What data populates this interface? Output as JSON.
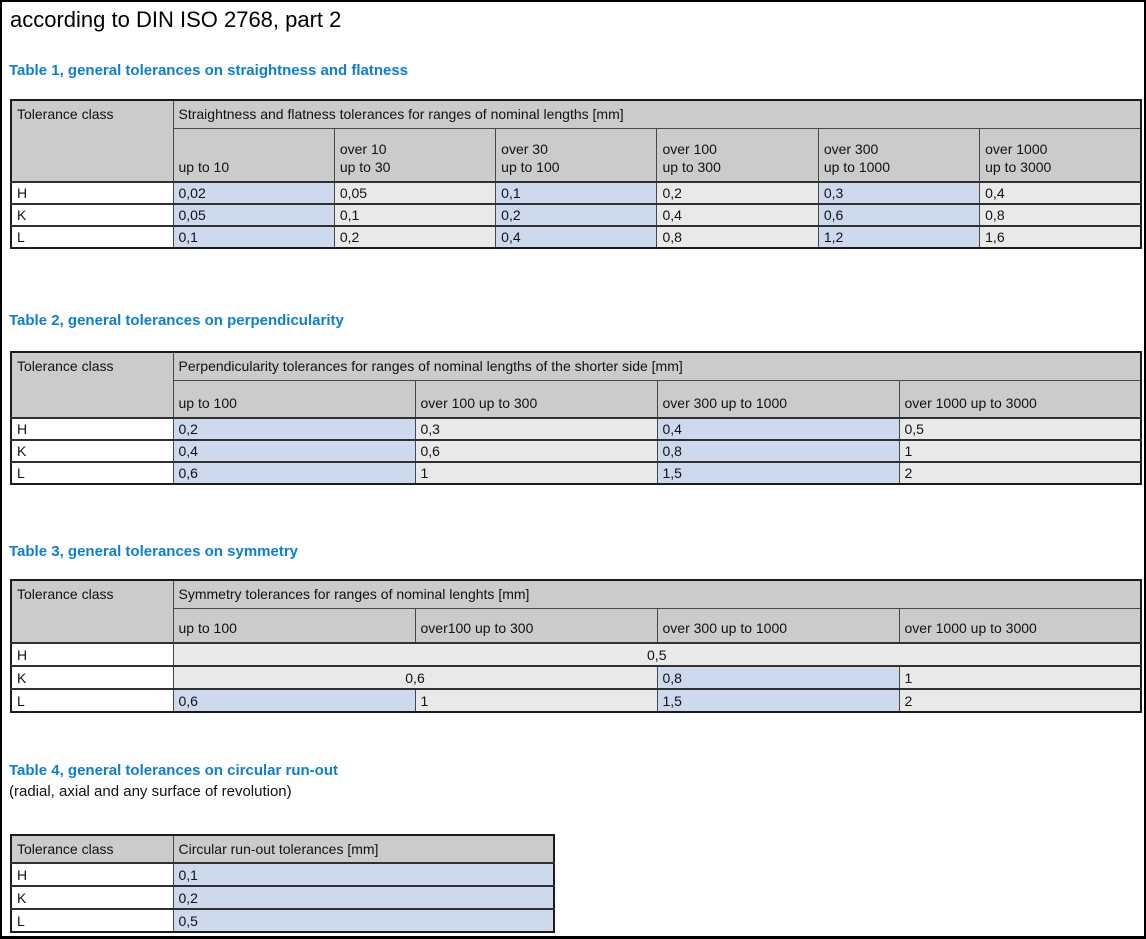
{
  "page": {
    "title": "according to DIN ISO 2768, part 2"
  },
  "colors": {
    "heading_blue": "#0d7fd2",
    "header_bg": "#cbcbcb",
    "cell_blue": "#cdd9ed",
    "cell_gray": "#e9e9e9",
    "border_dark": "#1b1b1b",
    "border_inner": "#474747"
  },
  "tables": [
    {
      "id": "t1",
      "heading": "Table 1, general tolerances on straightness and flatness",
      "class_header": "Tolerance class",
      "span_header": "Straightness and flatness tolerances for ranges of nominal lengths [mm]",
      "col_headers": [
        [
          "up to 10"
        ],
        [
          "over 10",
          "up to 30"
        ],
        [
          "over 30",
          "up to 100"
        ],
        [
          "over 100",
          "up to 300"
        ],
        [
          "over 300",
          "up to 1000"
        ],
        [
          "over 1000",
          "up to 3000"
        ]
      ],
      "rows": [
        {
          "class": "H",
          "cells": [
            {
              "v": "0,02",
              "bg": "blue"
            },
            {
              "v": "0,05",
              "bg": "gray"
            },
            {
              "v": "0,1",
              "bg": "blue"
            },
            {
              "v": "0,2",
              "bg": "gray"
            },
            {
              "v": "0,3",
              "bg": "blue"
            },
            {
              "v": "0,4",
              "bg": "gray"
            }
          ]
        },
        {
          "class": "K",
          "cells": [
            {
              "v": "0,05",
              "bg": "blue"
            },
            {
              "v": "0,1",
              "bg": "gray"
            },
            {
              "v": "0,2",
              "bg": "blue"
            },
            {
              "v": "0,4",
              "bg": "gray"
            },
            {
              "v": "0,6",
              "bg": "blue"
            },
            {
              "v": "0,8",
              "bg": "gray"
            }
          ]
        },
        {
          "class": "L",
          "cells": [
            {
              "v": "0,1",
              "bg": "blue"
            },
            {
              "v": "0,2",
              "bg": "gray"
            },
            {
              "v": "0,4",
              "bg": "blue"
            },
            {
              "v": "0,8",
              "bg": "gray"
            },
            {
              "v": "1,2",
              "bg": "blue"
            },
            {
              "v": "1,6",
              "bg": "gray"
            }
          ]
        }
      ]
    },
    {
      "id": "t2",
      "heading": "Table 2, general tolerances on perpendicularity",
      "class_header": "Tolerance class",
      "span_header": "Perpendicularity tolerances for ranges of nominal lengths of the shorter side [mm]",
      "col_headers": [
        [
          "up to 100"
        ],
        [
          "over 100 up to 300"
        ],
        [
          "over 300 up to 1000"
        ],
        [
          "over 1000 up to 3000"
        ]
      ],
      "rows": [
        {
          "class": "H",
          "cells": [
            {
              "v": "0,2",
              "bg": "blue"
            },
            {
              "v": "0,3",
              "bg": "gray"
            },
            {
              "v": "0,4",
              "bg": "blue"
            },
            {
              "v": "0,5",
              "bg": "gray"
            }
          ]
        },
        {
          "class": "K",
          "cells": [
            {
              "v": "0,4",
              "bg": "blue"
            },
            {
              "v": "0,6",
              "bg": "gray"
            },
            {
              "v": "0,8",
              "bg": "blue"
            },
            {
              "v": "1",
              "bg": "gray"
            }
          ]
        },
        {
          "class": "L",
          "cells": [
            {
              "v": "0,6",
              "bg": "blue"
            },
            {
              "v": "1",
              "bg": "gray"
            },
            {
              "v": "1,5",
              "bg": "blue"
            },
            {
              "v": "2",
              "bg": "gray"
            }
          ]
        }
      ]
    },
    {
      "id": "t3",
      "heading": "Table 3, general tolerances on symmetry",
      "class_header": "Tolerance class",
      "span_header": "Symmetry tolerances for ranges of nominal lenghts [mm]",
      "col_headers": [
        [
          "up to 100"
        ],
        [
          "over100 up to 300"
        ],
        [
          "over 300 up to 1000"
        ],
        [
          "over 1000 up to 3000"
        ]
      ],
      "rows": [
        {
          "class": "H",
          "cells": [
            {
              "v": "0,5",
              "bg": "gray",
              "colspan": 4,
              "align": "center"
            }
          ]
        },
        {
          "class": "K",
          "cells": [
            {
              "v": "0,6",
              "bg": "gray",
              "colspan": 2,
              "align": "center"
            },
            {
              "v": "0,8",
              "bg": "blue"
            },
            {
              "v": "1",
              "bg": "gray"
            }
          ]
        },
        {
          "class": "L",
          "cells": [
            {
              "v": "0,6",
              "bg": "blue"
            },
            {
              "v": "1",
              "bg": "gray"
            },
            {
              "v": "1,5",
              "bg": "blue"
            },
            {
              "v": "2",
              "bg": "gray"
            }
          ]
        }
      ]
    },
    {
      "id": "t4",
      "heading": "Table 4, general tolerances on circular run-out",
      "subheading": "(radial, axial and any surface of revolution)",
      "class_header": "Tolerance class",
      "span_header": "Circular run-out tolerances [mm]",
      "col_headers": [],
      "rows": [
        {
          "class": "H",
          "cells": [
            {
              "v": "0,1",
              "bg": "blue"
            }
          ]
        },
        {
          "class": "K",
          "cells": [
            {
              "v": "0,2",
              "bg": "blue"
            }
          ]
        },
        {
          "class": "L",
          "cells": [
            {
              "v": "0,5",
              "bg": "blue"
            }
          ]
        }
      ]
    }
  ]
}
